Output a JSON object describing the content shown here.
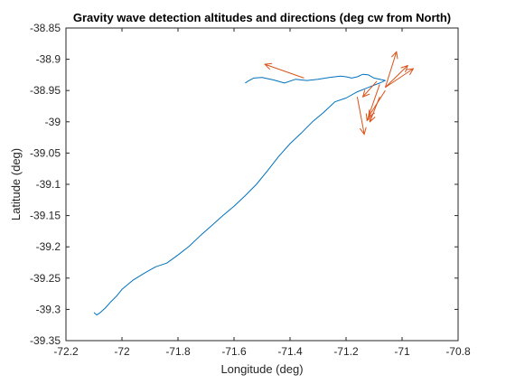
{
  "chart_data": {
    "type": "line",
    "title": "Gravity wave detection altitudes and directions (deg cw from North)",
    "xlabel": "Longitude (deg)",
    "ylabel": "Latitude (deg)",
    "xlim": [
      -72.2,
      -70.8
    ],
    "ylim": [
      -39.35,
      -38.85
    ],
    "xticks": [
      -72.2,
      -72,
      -71.8,
      -71.6,
      -71.4,
      -71.2,
      -71,
      -70.8
    ],
    "xtick_labels": [
      "-72.2",
      "-72",
      "-71.8",
      "-71.6",
      "-71.4",
      "-71.2",
      "-71",
      "-70.8"
    ],
    "yticks": [
      -38.85,
      -38.9,
      -38.95,
      -39,
      -39.05,
      -39.1,
      -39.15,
      -39.2,
      -39.25,
      -39.3,
      -39.35
    ],
    "ytick_labels": [
      "-38.85",
      "-38.9",
      "-38.95",
      "-39",
      "-39.05",
      "-39.1",
      "-39.15",
      "-39.2",
      "-39.25",
      "-39.3",
      "-39.35"
    ],
    "grid": false,
    "series": [
      {
        "color": "#0072BD",
        "x": [
          -72.1,
          -72.09,
          -72.08,
          -72.06,
          -72.04,
          -72.02,
          -72.0,
          -71.96,
          -71.92,
          -71.88,
          -71.84,
          -71.8,
          -71.76,
          -71.72,
          -71.68,
          -71.64,
          -71.6,
          -71.56,
          -71.52,
          -71.48,
          -71.44,
          -71.4,
          -71.36,
          -71.32,
          -71.28,
          -71.24,
          -71.2,
          -71.16,
          -71.12,
          -71.08,
          -71.06,
          -71.08,
          -71.1,
          -71.12,
          -71.14,
          -71.16,
          -71.18,
          -71.2,
          -71.22,
          -71.24,
          -71.26,
          -71.3,
          -71.34,
          -71.38,
          -71.42,
          -71.46,
          -71.5,
          -71.53,
          -71.55,
          -71.56
        ],
        "y": [
          -39.305,
          -39.309,
          -39.306,
          -39.298,
          -39.288,
          -39.279,
          -39.268,
          -39.253,
          -39.242,
          -39.232,
          -39.226,
          -39.213,
          -39.199,
          -39.182,
          -39.166,
          -39.15,
          -39.135,
          -39.118,
          -39.1,
          -39.078,
          -39.055,
          -39.035,
          -39.018,
          -39.0,
          -38.985,
          -38.968,
          -38.962,
          -38.952,
          -38.945,
          -38.938,
          -38.934,
          -38.932,
          -38.93,
          -38.925,
          -38.924,
          -38.928,
          -38.93,
          -38.928,
          -38.927,
          -38.928,
          -38.929,
          -38.932,
          -38.934,
          -38.932,
          -38.938,
          -38.933,
          -38.929,
          -38.93,
          -38.935,
          -38.938
        ]
      }
    ],
    "arrows": {
      "color": "#D95319",
      "items": [
        {
          "x0": -71.35,
          "y0": -38.93,
          "x1": -71.49,
          "y1": -38.908
        },
        {
          "x0": -71.06,
          "y0": -38.945,
          "x1": -70.98,
          "y1": -38.91
        },
        {
          "x0": -71.06,
          "y0": -38.945,
          "x1": -71.02,
          "y1": -38.888
        },
        {
          "x0": -71.06,
          "y0": -38.945,
          "x1": -70.96,
          "y1": -38.915
        },
        {
          "x0": -71.09,
          "y0": -38.935,
          "x1": -71.14,
          "y1": -38.96
        },
        {
          "x0": -71.16,
          "y0": -38.96,
          "x1": -71.135,
          "y1": -39.02
        },
        {
          "x0": -71.08,
          "y0": -38.94,
          "x1": -71.125,
          "y1": -38.998
        },
        {
          "x0": -71.06,
          "y0": -38.95,
          "x1": -71.12,
          "y1": -38.992
        },
        {
          "x0": -71.08,
          "y0": -38.96,
          "x1": -71.115,
          "y1": -39.0
        }
      ]
    }
  }
}
